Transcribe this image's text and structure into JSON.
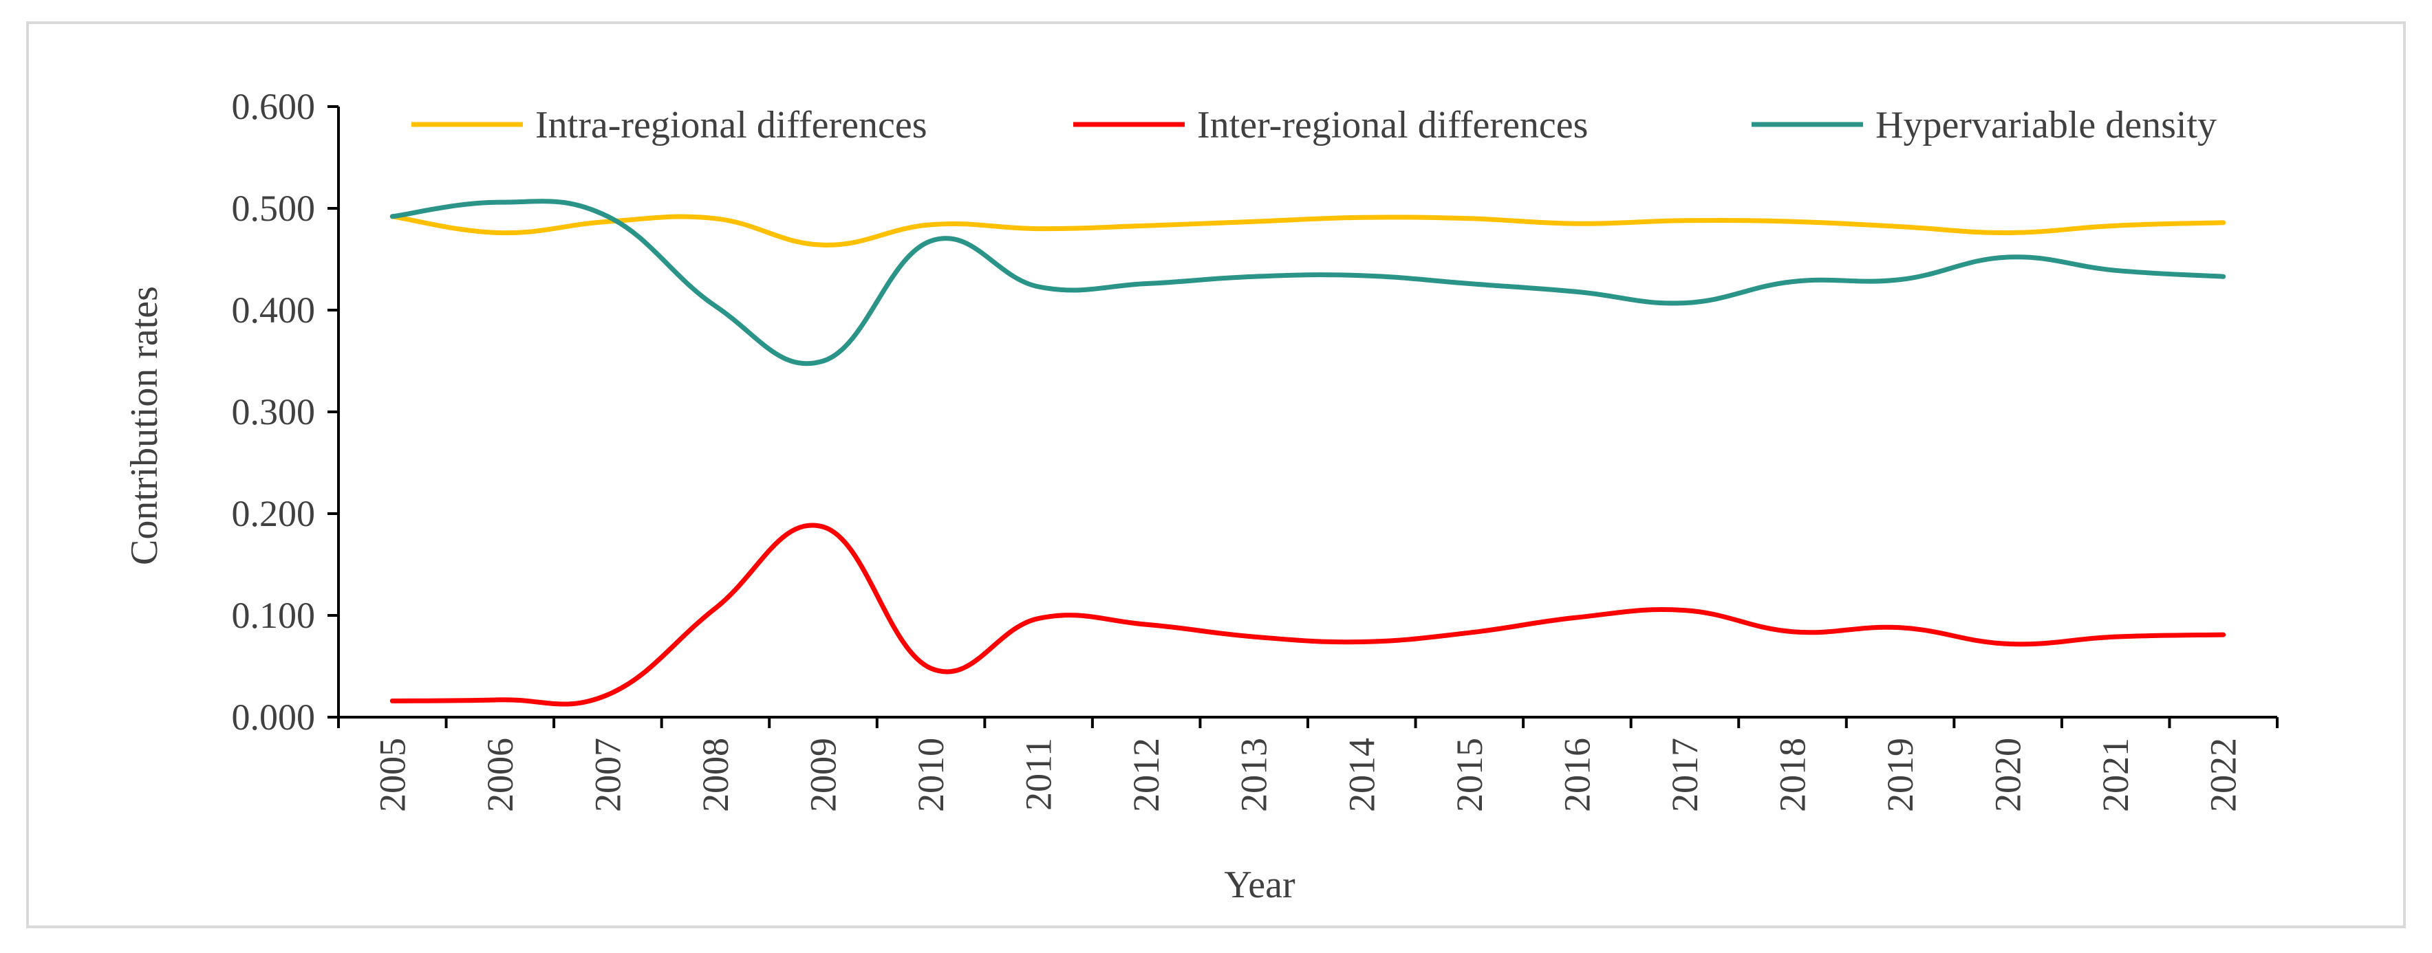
{
  "chart_data": {
    "type": "line",
    "title": "",
    "xlabel": "Year",
    "ylabel": "Contribution rates",
    "ylim": [
      0,
      0.6
    ],
    "yticks": [
      "0.000",
      "0.100",
      "0.200",
      "0.300",
      "0.400",
      "0.500",
      "0.600"
    ],
    "categories": [
      "2005",
      "2006",
      "2007",
      "2008",
      "2009",
      "2010",
      "2011",
      "2012",
      "2013",
      "2014",
      "2015",
      "2016",
      "2017",
      "2018",
      "2019",
      "2020",
      "2021",
      "2022"
    ],
    "legend_position": "top",
    "grid": false,
    "series": [
      {
        "name": "Intra-regional differences",
        "color": "#FFC000",
        "values": [
          0.492,
          0.476,
          0.487,
          0.49,
          0.464,
          0.484,
          0.48,
          0.483,
          0.487,
          0.491,
          0.49,
          0.485,
          0.488,
          0.487,
          0.482,
          0.476,
          0.483,
          0.486
        ]
      },
      {
        "name": "Inter-regional differences",
        "color": "#FF0000",
        "values": [
          0.016,
          0.017,
          0.022,
          0.107,
          0.187,
          0.048,
          0.097,
          0.091,
          0.079,
          0.074,
          0.083,
          0.098,
          0.105,
          0.084,
          0.088,
          0.072,
          0.079,
          0.081
        ]
      },
      {
        "name": "Hypervariable density",
        "color": "#2A9488",
        "values": [
          0.492,
          0.506,
          0.492,
          0.404,
          0.35,
          0.468,
          0.423,
          0.426,
          0.433,
          0.434,
          0.426,
          0.418,
          0.407,
          0.428,
          0.43,
          0.452,
          0.439,
          0.433
        ]
      }
    ]
  }
}
